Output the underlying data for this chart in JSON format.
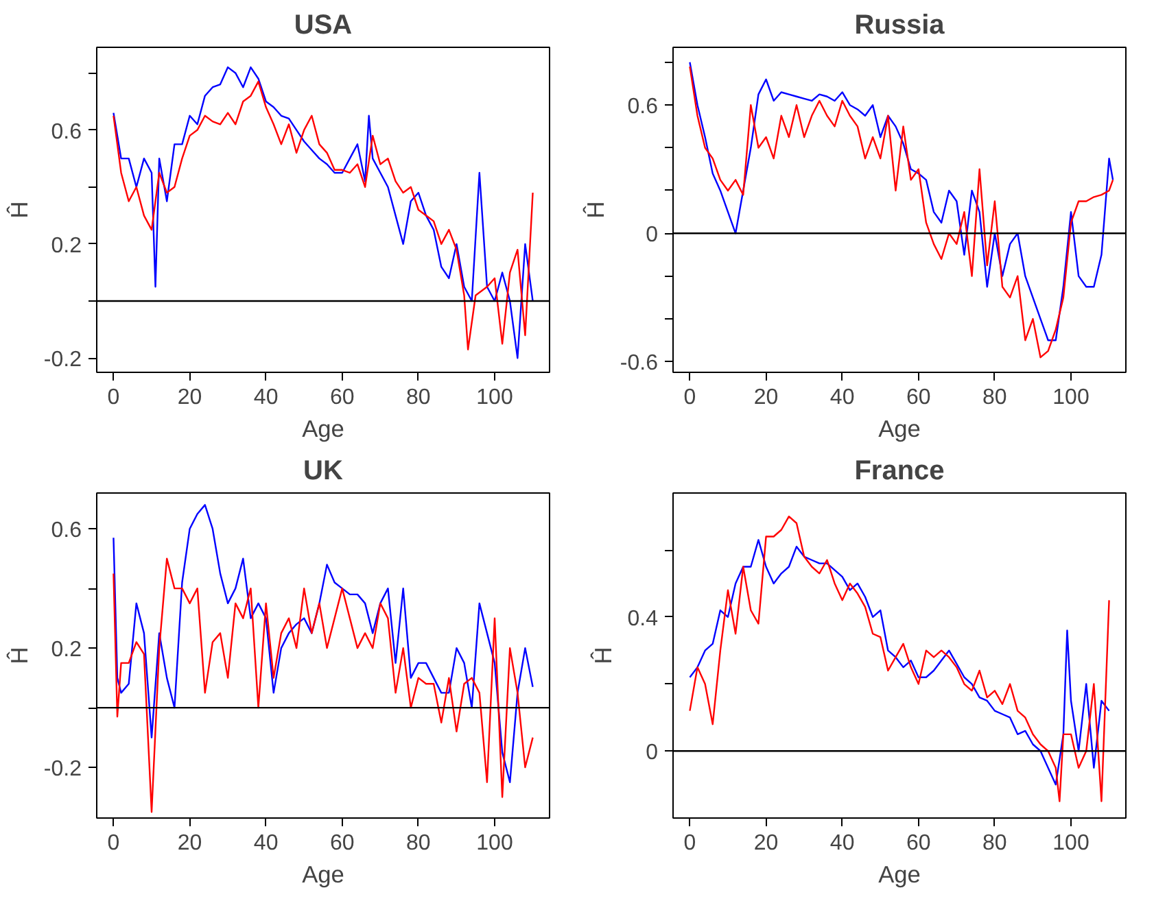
{
  "chart_data": [
    {
      "type": "line",
      "title": "USA",
      "xlabel": "Age",
      "ylabel": "Ĥ",
      "xlim": [
        -4.4,
        114.4
      ],
      "ylim": [
        -0.25,
        0.89
      ],
      "xticks": [
        0,
        20,
        40,
        60,
        80,
        100
      ],
      "yticks": [
        -0.2,
        {
          "value": 0,
          "label": null
        },
        0.2,
        {
          "value": 0.4,
          "label": null
        },
        0.6,
        {
          "value": 0.8,
          "label": null
        }
      ],
      "grid": false,
      "ref_lines": [
        {
          "axis": "y",
          "value": 0,
          "color": "#000000"
        }
      ],
      "series": [
        {
          "color": "#0000ff",
          "x": [
            0,
            2,
            4,
            6,
            8,
            10,
            11,
            12,
            14,
            16,
            18,
            20,
            22,
            24,
            26,
            28,
            30,
            32,
            34,
            36,
            38,
            40,
            42,
            44,
            46,
            48,
            50,
            52,
            54,
            56,
            58,
            60,
            62,
            64,
            66,
            67,
            68,
            70,
            72,
            74,
            76,
            78,
            80,
            82,
            84,
            86,
            88,
            90,
            92,
            94,
            96,
            98,
            100,
            102,
            104,
            106,
            108,
            110
          ],
          "values": [
            0.66,
            0.5,
            0.5,
            0.4,
            0.5,
            0.45,
            0.05,
            0.5,
            0.35,
            0.55,
            0.55,
            0.65,
            0.62,
            0.72,
            0.75,
            0.76,
            0.82,
            0.8,
            0.75,
            0.82,
            0.78,
            0.7,
            0.68,
            0.65,
            0.64,
            0.6,
            0.56,
            0.53,
            0.5,
            0.48,
            0.45,
            0.45,
            0.5,
            0.55,
            0.42,
            0.65,
            0.5,
            0.45,
            0.4,
            0.3,
            0.2,
            0.35,
            0.38,
            0.3,
            0.25,
            0.12,
            0.08,
            0.2,
            0.05,
            0.0,
            0.45,
            0.05,
            0.0,
            0.1,
            0.0,
            -0.2,
            0.2,
            0.0
          ]
        },
        {
          "color": "#ff0000",
          "x": [
            0,
            2,
            4,
            6,
            8,
            10,
            12,
            14,
            16,
            18,
            20,
            22,
            24,
            26,
            28,
            30,
            32,
            34,
            36,
            38,
            40,
            42,
            44,
            46,
            48,
            50,
            52,
            54,
            56,
            58,
            60,
            62,
            64,
            66,
            68,
            70,
            72,
            74,
            76,
            78,
            80,
            82,
            84,
            86,
            88,
            90,
            92,
            93,
            95,
            98,
            100,
            102,
            104,
            106,
            108,
            110
          ],
          "values": [
            0.65,
            0.45,
            0.35,
            0.4,
            0.3,
            0.25,
            0.45,
            0.38,
            0.4,
            0.5,
            0.58,
            0.6,
            0.65,
            0.63,
            0.62,
            0.66,
            0.62,
            0.7,
            0.72,
            0.77,
            0.68,
            0.62,
            0.55,
            0.62,
            0.52,
            0.6,
            0.65,
            0.55,
            0.52,
            0.46,
            0.46,
            0.45,
            0.48,
            0.4,
            0.58,
            0.48,
            0.5,
            0.42,
            0.38,
            0.4,
            0.32,
            0.3,
            0.28,
            0.2,
            0.25,
            0.18,
            0.02,
            -0.17,
            0.02,
            0.05,
            0.08,
            -0.15,
            0.1,
            0.18,
            -0.12,
            0.38
          ]
        }
      ]
    },
    {
      "type": "line",
      "title": "Russia",
      "xlabel": "Age",
      "ylabel": "Ĥ",
      "xlim": [
        -4.4,
        114.4
      ],
      "ylim": [
        -0.65,
        0.87
      ],
      "xticks": [
        0,
        20,
        40,
        60,
        80,
        100
      ],
      "yticks": [
        -0.6,
        {
          "value": -0.4,
          "label": null
        },
        {
          "value": -0.2,
          "label": null
        },
        0,
        {
          "value": 0.2,
          "label": null
        },
        {
          "value": 0.4,
          "label": null
        },
        0.6,
        {
          "value": 0.8,
          "label": null
        }
      ],
      "grid": false,
      "ref_lines": [
        {
          "axis": "y",
          "value": 0,
          "color": "#000000"
        }
      ],
      "series": [
        {
          "color": "#0000ff",
          "x": [
            0,
            2,
            4,
            6,
            8,
            10,
            12,
            14,
            16,
            18,
            20,
            22,
            24,
            26,
            28,
            30,
            32,
            34,
            36,
            38,
            40,
            42,
            44,
            46,
            48,
            50,
            52,
            54,
            56,
            58,
            60,
            62,
            64,
            66,
            68,
            70,
            72,
            74,
            76,
            78,
            80,
            82,
            84,
            86,
            88,
            90,
            92,
            94,
            96,
            98,
            100,
            102,
            104,
            106,
            108,
            110,
            111
          ],
          "values": [
            0.8,
            0.6,
            0.45,
            0.28,
            0.2,
            0.1,
            0.0,
            0.2,
            0.4,
            0.65,
            0.72,
            0.62,
            0.66,
            0.65,
            0.64,
            0.63,
            0.62,
            0.65,
            0.64,
            0.62,
            0.66,
            0.6,
            0.58,
            0.55,
            0.6,
            0.45,
            0.55,
            0.5,
            0.42,
            0.3,
            0.28,
            0.25,
            0.1,
            0.05,
            0.2,
            0.15,
            -0.1,
            0.2,
            0.1,
            -0.25,
            0.0,
            -0.2,
            -0.05,
            0.0,
            -0.2,
            -0.3,
            -0.4,
            -0.5,
            -0.5,
            -0.25,
            0.1,
            -0.2,
            -0.25,
            -0.25,
            -0.1,
            0.35,
            0.25
          ]
        },
        {
          "color": "#ff0000",
          "x": [
            0,
            2,
            4,
            6,
            8,
            10,
            12,
            14,
            16,
            18,
            20,
            22,
            24,
            26,
            28,
            30,
            32,
            34,
            36,
            38,
            40,
            42,
            44,
            46,
            48,
            50,
            52,
            54,
            56,
            58,
            60,
            62,
            64,
            66,
            68,
            70,
            72,
            74,
            76,
            78,
            80,
            82,
            84,
            86,
            88,
            90,
            92,
            94,
            96,
            98,
            100,
            102,
            104,
            106,
            108,
            110,
            111
          ],
          "values": [
            0.78,
            0.55,
            0.4,
            0.35,
            0.25,
            0.2,
            0.25,
            0.18,
            0.6,
            0.4,
            0.45,
            0.35,
            0.55,
            0.45,
            0.6,
            0.45,
            0.55,
            0.62,
            0.55,
            0.5,
            0.62,
            0.55,
            0.5,
            0.35,
            0.45,
            0.35,
            0.55,
            0.2,
            0.5,
            0.25,
            0.3,
            0.05,
            -0.05,
            -0.12,
            0.0,
            -0.05,
            0.1,
            -0.2,
            0.3,
            -0.15,
            0.15,
            -0.25,
            -0.3,
            -0.2,
            -0.5,
            -0.4,
            -0.58,
            -0.55,
            -0.45,
            -0.3,
            0.05,
            0.15,
            0.15,
            0.17,
            0.18,
            0.2,
            0.25
          ]
        }
      ]
    },
    {
      "type": "line",
      "title": "UK",
      "xlabel": "Age",
      "ylabel": "Ĥ",
      "xlim": [
        -4.4,
        114.4
      ],
      "ylim": [
        -0.37,
        0.72
      ],
      "xticks": [
        0,
        20,
        40,
        60,
        80,
        100
      ],
      "yticks": [
        -0.2,
        {
          "value": 0,
          "label": null
        },
        0.2,
        {
          "value": 0.4,
          "label": null
        },
        0.6
      ],
      "grid": false,
      "ref_lines": [
        {
          "axis": "y",
          "value": 0,
          "color": "#000000"
        }
      ],
      "series": [
        {
          "color": "#0000ff",
          "x": [
            0,
            1,
            2,
            4,
            6,
            8,
            10,
            12,
            14,
            16,
            18,
            20,
            22,
            24,
            26,
            28,
            30,
            32,
            34,
            36,
            38,
            40,
            42,
            44,
            46,
            48,
            50,
            52,
            54,
            56,
            58,
            60,
            62,
            64,
            66,
            68,
            70,
            72,
            74,
            76,
            78,
            80,
            82,
            84,
            86,
            88,
            90,
            92,
            94,
            96,
            98,
            100,
            102,
            104,
            106,
            108,
            110
          ],
          "values": [
            0.57,
            0.1,
            0.05,
            0.08,
            0.35,
            0.25,
            -0.1,
            0.25,
            0.1,
            0.0,
            0.42,
            0.6,
            0.65,
            0.68,
            0.6,
            0.45,
            0.35,
            0.4,
            0.5,
            0.3,
            0.35,
            0.3,
            0.05,
            0.2,
            0.25,
            0.28,
            0.3,
            0.25,
            0.35,
            0.48,
            0.42,
            0.4,
            0.38,
            0.38,
            0.35,
            0.25,
            0.35,
            0.4,
            0.15,
            0.4,
            0.1,
            0.15,
            0.15,
            0.1,
            0.05,
            0.05,
            0.2,
            0.15,
            0.0,
            0.35,
            0.25,
            0.15,
            -0.15,
            -0.25,
            0.05,
            0.2,
            0.07
          ]
        },
        {
          "color": "#ff0000",
          "x": [
            0,
            1,
            2,
            4,
            6,
            8,
            10,
            12,
            14,
            16,
            18,
            20,
            22,
            24,
            26,
            28,
            30,
            32,
            34,
            36,
            38,
            40,
            42,
            44,
            46,
            48,
            50,
            52,
            54,
            56,
            58,
            60,
            62,
            64,
            66,
            68,
            70,
            72,
            74,
            76,
            78,
            80,
            82,
            84,
            86,
            88,
            90,
            92,
            94,
            96,
            98,
            100,
            102,
            104,
            106,
            108,
            110
          ],
          "values": [
            0.45,
            -0.03,
            0.15,
            0.15,
            0.22,
            0.18,
            -0.35,
            0.2,
            0.5,
            0.4,
            0.4,
            0.35,
            0.4,
            0.05,
            0.22,
            0.25,
            0.1,
            0.35,
            0.3,
            0.4,
            0.0,
            0.35,
            0.1,
            0.25,
            0.3,
            0.2,
            0.4,
            0.25,
            0.35,
            0.2,
            0.3,
            0.4,
            0.3,
            0.2,
            0.25,
            0.2,
            0.35,
            0.3,
            0.05,
            0.2,
            0.0,
            0.1,
            0.08,
            0.08,
            -0.05,
            0.1,
            -0.08,
            0.08,
            0.1,
            0.05,
            -0.25,
            0.3,
            -0.3,
            0.2,
            0.05,
            -0.2,
            -0.1
          ]
        }
      ]
    },
    {
      "type": "line",
      "title": "France",
      "xlabel": "Age",
      "ylabel": "Ĥ",
      "xlim": [
        -4.4,
        114.4
      ],
      "ylim": [
        -0.2,
        0.77
      ],
      "xticks": [
        0,
        20,
        40,
        60,
        80,
        100
      ],
      "yticks": [
        0,
        {
          "value": 0.2,
          "label": null
        },
        0.4,
        {
          "value": 0.6,
          "label": null
        }
      ],
      "grid": false,
      "ref_lines": [
        {
          "axis": "y",
          "value": 0,
          "color": "#000000"
        }
      ],
      "series": [
        {
          "color": "#0000ff",
          "x": [
            0,
            2,
            4,
            6,
            8,
            10,
            12,
            14,
            16,
            18,
            20,
            22,
            24,
            26,
            28,
            30,
            32,
            34,
            36,
            38,
            40,
            42,
            44,
            46,
            48,
            50,
            52,
            54,
            56,
            58,
            60,
            62,
            64,
            66,
            68,
            70,
            72,
            74,
            76,
            78,
            80,
            82,
            84,
            86,
            88,
            90,
            92,
            94,
            96,
            98,
            99,
            100,
            102,
            104,
            106,
            108,
            110
          ],
          "values": [
            0.22,
            0.25,
            0.3,
            0.32,
            0.42,
            0.4,
            0.5,
            0.55,
            0.55,
            0.63,
            0.55,
            0.5,
            0.53,
            0.55,
            0.61,
            0.58,
            0.57,
            0.56,
            0.56,
            0.54,
            0.52,
            0.48,
            0.5,
            0.46,
            0.4,
            0.42,
            0.3,
            0.28,
            0.25,
            0.27,
            0.22,
            0.22,
            0.24,
            0.27,
            0.3,
            0.26,
            0.22,
            0.2,
            0.16,
            0.15,
            0.12,
            0.11,
            0.1,
            0.05,
            0.06,
            0.02,
            0.0,
            -0.05,
            -0.1,
            0.05,
            0.36,
            0.15,
            0.0,
            0.2,
            -0.05,
            0.15,
            0.12
          ]
        },
        {
          "color": "#ff0000",
          "x": [
            0,
            2,
            4,
            6,
            8,
            10,
            12,
            14,
            16,
            18,
            20,
            22,
            24,
            26,
            28,
            30,
            32,
            34,
            36,
            38,
            40,
            42,
            44,
            46,
            48,
            50,
            52,
            54,
            56,
            58,
            60,
            62,
            64,
            66,
            68,
            70,
            72,
            74,
            76,
            78,
            80,
            82,
            84,
            86,
            88,
            90,
            92,
            94,
            96,
            97,
            98,
            100,
            102,
            104,
            106,
            108,
            110
          ],
          "values": [
            0.12,
            0.25,
            0.2,
            0.08,
            0.3,
            0.48,
            0.35,
            0.55,
            0.42,
            0.38,
            0.64,
            0.64,
            0.66,
            0.7,
            0.68,
            0.58,
            0.55,
            0.53,
            0.57,
            0.5,
            0.45,
            0.5,
            0.47,
            0.43,
            0.35,
            0.34,
            0.24,
            0.28,
            0.32,
            0.25,
            0.2,
            0.3,
            0.28,
            0.3,
            0.28,
            0.25,
            0.2,
            0.18,
            0.24,
            0.16,
            0.18,
            0.14,
            0.2,
            0.12,
            0.1,
            0.05,
            0.02,
            0.0,
            -0.05,
            -0.15,
            0.05,
            0.05,
            -0.05,
            0.0,
            0.2,
            -0.15,
            0.45
          ]
        }
      ]
    }
  ]
}
